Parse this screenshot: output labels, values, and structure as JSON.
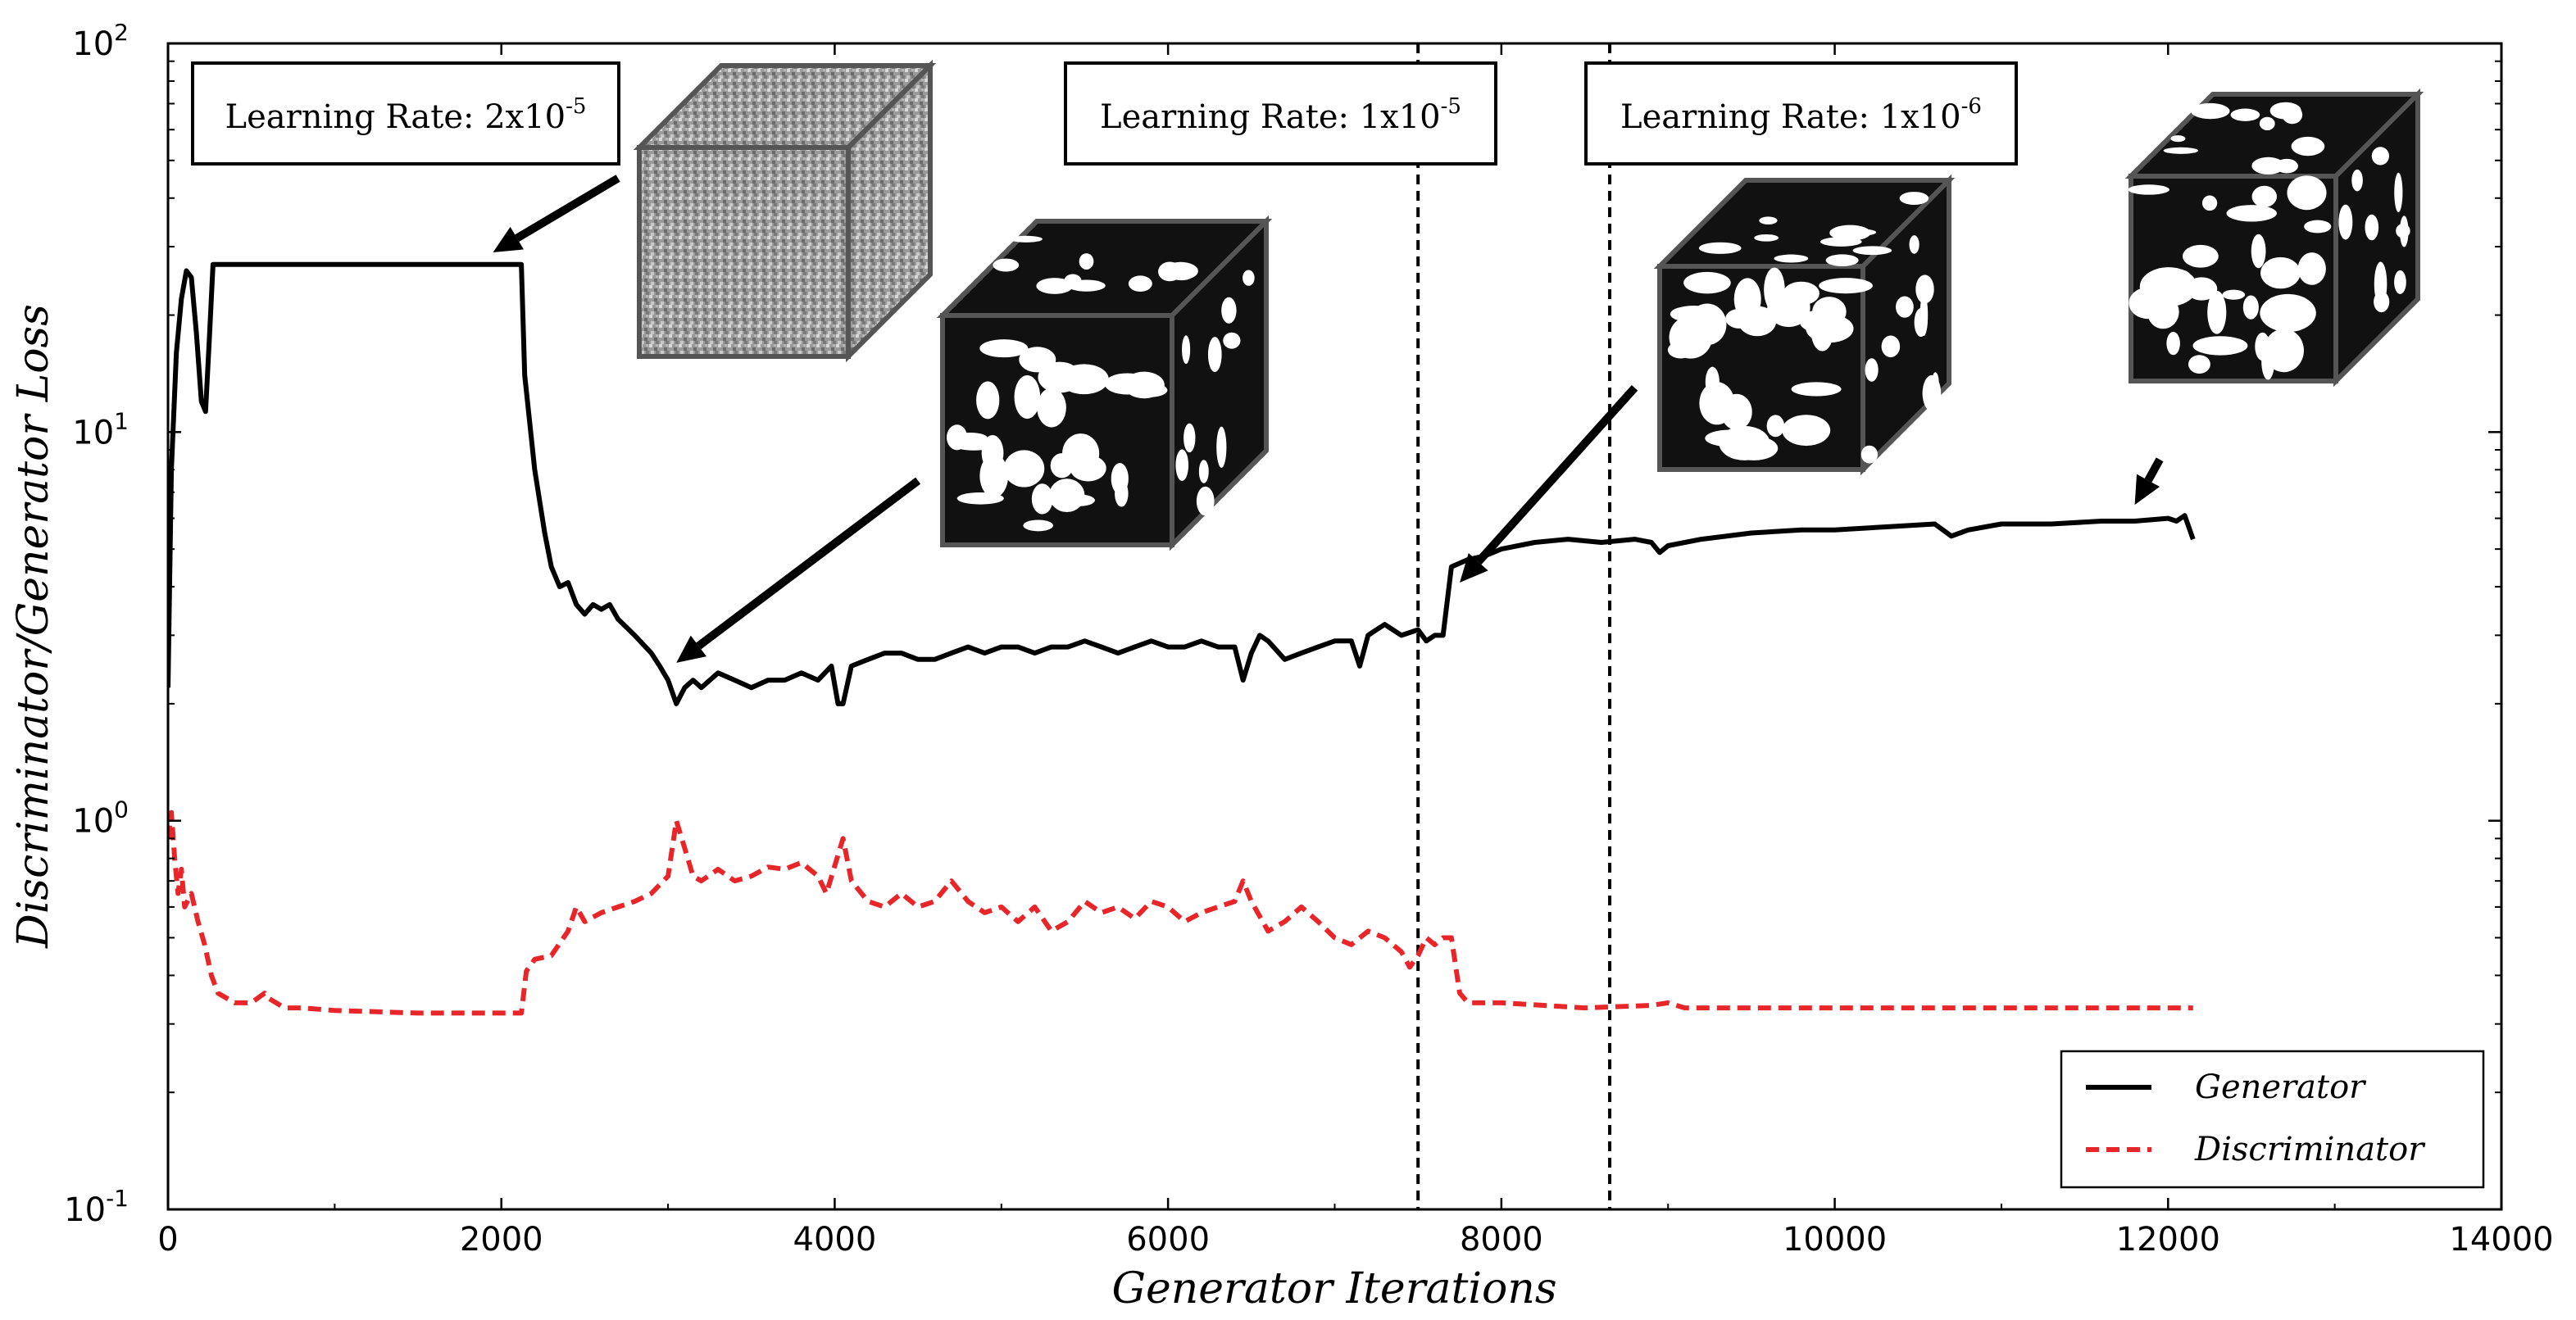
{
  "chart_data": {
    "type": "line",
    "xlabel": "Generator Iterations",
    "ylabel": "Discriminator/Generator Loss",
    "xlim": [
      0,
      14000
    ],
    "ylim": [
      0.1,
      100
    ],
    "y_scale": "log",
    "x_ticks": [
      0,
      2000,
      4000,
      6000,
      8000,
      10000,
      12000,
      14000
    ],
    "x_tick_labels": [
      "0",
      "2000",
      "4000",
      "6000",
      "8000",
      "10000",
      "12000",
      "14000"
    ],
    "y_ticks": [
      {
        "value": 0.1,
        "base": "10",
        "exp": "-1"
      },
      {
        "value": 1,
        "base": "10",
        "exp": "0"
      },
      {
        "value": 10,
        "base": "10",
        "exp": "1"
      },
      {
        "value": 100,
        "base": "10",
        "exp": "2"
      }
    ],
    "grid": false,
    "legend_position": "bottom-right",
    "series": [
      {
        "name": "Generator",
        "color": "#000000",
        "style": "solid",
        "points": [
          [
            0,
            2.2
          ],
          [
            20,
            8
          ],
          [
            50,
            16
          ],
          [
            80,
            22
          ],
          [
            110,
            26
          ],
          [
            140,
            25
          ],
          [
            170,
            18
          ],
          [
            200,
            12
          ],
          [
            225,
            11.3
          ],
          [
            250,
            18
          ],
          [
            270,
            27
          ],
          [
            500,
            27
          ],
          [
            1000,
            27
          ],
          [
            1500,
            27
          ],
          [
            2000,
            27
          ],
          [
            2120,
            27
          ],
          [
            2140,
            14
          ],
          [
            2200,
            8
          ],
          [
            2260,
            5.5
          ],
          [
            2300,
            4.5
          ],
          [
            2350,
            4.0
          ],
          [
            2400,
            4.1
          ],
          [
            2450,
            3.6
          ],
          [
            2500,
            3.4
          ],
          [
            2550,
            3.6
          ],
          [
            2600,
            3.5
          ],
          [
            2650,
            3.6
          ],
          [
            2700,
            3.3
          ],
          [
            2800,
            3.0
          ],
          [
            2900,
            2.7
          ],
          [
            2950,
            2.5
          ],
          [
            3000,
            2.3
          ],
          [
            3050,
            2.0
          ],
          [
            3100,
            2.2
          ],
          [
            3150,
            2.3
          ],
          [
            3200,
            2.2
          ],
          [
            3300,
            2.4
          ],
          [
            3400,
            2.3
          ],
          [
            3500,
            2.2
          ],
          [
            3600,
            2.3
          ],
          [
            3700,
            2.3
          ],
          [
            3800,
            2.4
          ],
          [
            3900,
            2.3
          ],
          [
            3980,
            2.5
          ],
          [
            4020,
            2.0
          ],
          [
            4050,
            2.0
          ],
          [
            4100,
            2.5
          ],
          [
            4200,
            2.6
          ],
          [
            4300,
            2.7
          ],
          [
            4400,
            2.7
          ],
          [
            4500,
            2.6
          ],
          [
            4600,
            2.6
          ],
          [
            4700,
            2.7
          ],
          [
            4800,
            2.8
          ],
          [
            4900,
            2.7
          ],
          [
            5000,
            2.8
          ],
          [
            5100,
            2.8
          ],
          [
            5200,
            2.7
          ],
          [
            5300,
            2.8
          ],
          [
            5400,
            2.8
          ],
          [
            5500,
            2.9
          ],
          [
            5600,
            2.8
          ],
          [
            5700,
            2.7
          ],
          [
            5800,
            2.8
          ],
          [
            5900,
            2.9
          ],
          [
            6000,
            2.8
          ],
          [
            6100,
            2.8
          ],
          [
            6200,
            2.9
          ],
          [
            6300,
            2.8
          ],
          [
            6400,
            2.8
          ],
          [
            6450,
            2.3
          ],
          [
            6500,
            2.7
          ],
          [
            6550,
            3.0
          ],
          [
            6600,
            2.9
          ],
          [
            6700,
            2.6
          ],
          [
            6800,
            2.7
          ],
          [
            6900,
            2.8
          ],
          [
            7000,
            2.9
          ],
          [
            7100,
            2.9
          ],
          [
            7150,
            2.5
          ],
          [
            7200,
            3.0
          ],
          [
            7250,
            3.1
          ],
          [
            7300,
            3.2
          ],
          [
            7400,
            3.0
          ],
          [
            7500,
            3.1
          ],
          [
            7550,
            2.9
          ],
          [
            7600,
            3.0
          ],
          [
            7650,
            3.0
          ],
          [
            7700,
            4.5
          ],
          [
            7800,
            4.7
          ],
          [
            7900,
            4.8
          ],
          [
            8000,
            5.0
          ],
          [
            8200,
            5.2
          ],
          [
            8400,
            5.3
          ],
          [
            8600,
            5.2
          ],
          [
            8800,
            5.3
          ],
          [
            8900,
            5.2
          ],
          [
            8950,
            4.9
          ],
          [
            9000,
            5.1
          ],
          [
            9200,
            5.3
          ],
          [
            9500,
            5.5
          ],
          [
            9800,
            5.6
          ],
          [
            10000,
            5.6
          ],
          [
            10300,
            5.7
          ],
          [
            10600,
            5.8
          ],
          [
            10700,
            5.4
          ],
          [
            10800,
            5.6
          ],
          [
            11000,
            5.8
          ],
          [
            11300,
            5.8
          ],
          [
            11600,
            5.9
          ],
          [
            11800,
            5.9
          ],
          [
            12000,
            6.0
          ],
          [
            12050,
            5.9
          ],
          [
            12100,
            6.1
          ],
          [
            12150,
            5.3
          ]
        ]
      },
      {
        "name": "Discriminator",
        "color": "#e8262a",
        "style": "dashed",
        "points": [
          [
            0,
            0.9
          ],
          [
            20,
            1.05
          ],
          [
            40,
            0.8
          ],
          [
            60,
            0.65
          ],
          [
            80,
            0.75
          ],
          [
            100,
            0.6
          ],
          [
            140,
            0.65
          ],
          [
            180,
            0.55
          ],
          [
            220,
            0.48
          ],
          [
            260,
            0.4
          ],
          [
            300,
            0.36
          ],
          [
            400,
            0.34
          ],
          [
            500,
            0.34
          ],
          [
            580,
            0.36
          ],
          [
            600,
            0.35
          ],
          [
            700,
            0.33
          ],
          [
            800,
            0.33
          ],
          [
            1000,
            0.325
          ],
          [
            1500,
            0.32
          ],
          [
            2000,
            0.32
          ],
          [
            2120,
            0.32
          ],
          [
            2150,
            0.41
          ],
          [
            2200,
            0.44
          ],
          [
            2300,
            0.45
          ],
          [
            2400,
            0.52
          ],
          [
            2450,
            0.6
          ],
          [
            2500,
            0.55
          ],
          [
            2600,
            0.58
          ],
          [
            2700,
            0.6
          ],
          [
            2800,
            0.62
          ],
          [
            2900,
            0.65
          ],
          [
            3000,
            0.72
          ],
          [
            3050,
            1.0
          ],
          [
            3100,
            0.85
          ],
          [
            3150,
            0.72
          ],
          [
            3200,
            0.7
          ],
          [
            3300,
            0.75
          ],
          [
            3400,
            0.7
          ],
          [
            3500,
            0.72
          ],
          [
            3600,
            0.76
          ],
          [
            3700,
            0.75
          ],
          [
            3800,
            0.78
          ],
          [
            3900,
            0.72
          ],
          [
            3950,
            0.65
          ],
          [
            4050,
            0.9
          ],
          [
            4100,
            0.7
          ],
          [
            4200,
            0.62
          ],
          [
            4300,
            0.6
          ],
          [
            4400,
            0.65
          ],
          [
            4500,
            0.6
          ],
          [
            4600,
            0.62
          ],
          [
            4700,
            0.7
          ],
          [
            4800,
            0.62
          ],
          [
            4900,
            0.58
          ],
          [
            5000,
            0.6
          ],
          [
            5100,
            0.55
          ],
          [
            5200,
            0.6
          ],
          [
            5300,
            0.52
          ],
          [
            5400,
            0.55
          ],
          [
            5500,
            0.62
          ],
          [
            5600,
            0.58
          ],
          [
            5700,
            0.6
          ],
          [
            5800,
            0.56
          ],
          [
            5900,
            0.62
          ],
          [
            6000,
            0.6
          ],
          [
            6100,
            0.55
          ],
          [
            6200,
            0.58
          ],
          [
            6300,
            0.6
          ],
          [
            6400,
            0.62
          ],
          [
            6450,
            0.7
          ],
          [
            6500,
            0.62
          ],
          [
            6600,
            0.52
          ],
          [
            6700,
            0.55
          ],
          [
            6800,
            0.6
          ],
          [
            6900,
            0.55
          ],
          [
            7000,
            0.5
          ],
          [
            7100,
            0.48
          ],
          [
            7200,
            0.52
          ],
          [
            7300,
            0.5
          ],
          [
            7400,
            0.46
          ],
          [
            7450,
            0.42
          ],
          [
            7500,
            0.45
          ],
          [
            7550,
            0.5
          ],
          [
            7600,
            0.48
          ],
          [
            7650,
            0.5
          ],
          [
            7700,
            0.5
          ],
          [
            7750,
            0.36
          ],
          [
            7800,
            0.34
          ],
          [
            8000,
            0.34
          ],
          [
            8500,
            0.33
          ],
          [
            8900,
            0.335
          ],
          [
            9000,
            0.34
          ],
          [
            9100,
            0.33
          ],
          [
            9500,
            0.33
          ],
          [
            10000,
            0.33
          ],
          [
            10500,
            0.33
          ],
          [
            11000,
            0.33
          ],
          [
            11500,
            0.33
          ],
          [
            12000,
            0.33
          ],
          [
            12150,
            0.33
          ]
        ]
      }
    ],
    "vertical_lines": [
      {
        "x": 7500,
        "style": "dashed",
        "color": "#000000"
      },
      {
        "x": 8650,
        "style": "dashed",
        "color": "#000000"
      }
    ],
    "annotations": [
      {
        "text": "Learning Rate: 2x10",
        "exp": "-5"
      },
      {
        "text": "Learning Rate: 1x10",
        "exp": "-5"
      },
      {
        "text": "Learning Rate: 1x10",
        "exp": "-6"
      }
    ],
    "arrows": [
      {
        "from": [
          2700,
          45
        ],
        "to": [
          1950,
          29
        ]
      },
      {
        "from": [
          4500,
          7.5
        ],
        "to": [
          3050,
          2.55
        ]
      },
      {
        "from": [
          8800,
          13
        ],
        "to": [
          7750,
          4.1
        ]
      },
      {
        "from": [
          11950,
          8.5
        ],
        "to": [
          11800,
          6.5
        ]
      }
    ]
  }
}
